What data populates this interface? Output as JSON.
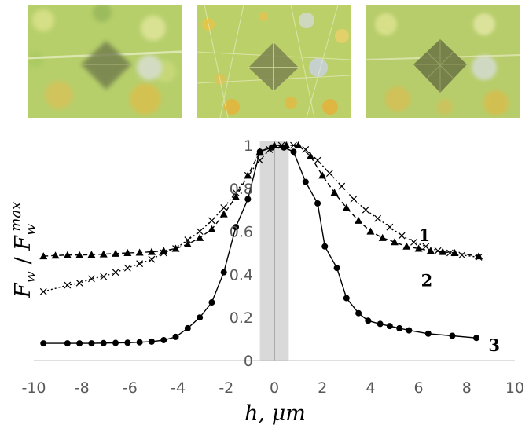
{
  "micrographs": [
    {
      "name": "indent-micrograph-1"
    },
    {
      "name": "indent-micrograph-2"
    },
    {
      "name": "indent-micrograph-3"
    }
  ],
  "chart_data": {
    "type": "line",
    "xlabel": "h, μm",
    "ylabel": "Fw / Fw^max",
    "ylabel_parts": {
      "F1": "F",
      "sub1": "w",
      "slash": " / ",
      "F2": "F",
      "sub2": "w",
      "sup": "max"
    },
    "xlim": [
      -10,
      10
    ],
    "ylim": [
      0,
      1
    ],
    "xticks": [
      "-10",
      "-8",
      "-6",
      "-4",
      "-2",
      "0",
      "2",
      "4",
      "6",
      "8",
      "10"
    ],
    "yticks": [
      "0",
      "0.2",
      "0.4",
      "0.6",
      "0.8",
      "1"
    ],
    "grid": false,
    "shaded_band": [
      -0.6,
      0.6
    ],
    "series": [
      {
        "name": "1",
        "marker": "x",
        "line": "dotted",
        "color": "#000000",
        "label_at": [
          6.0,
          0.58
        ],
        "points": [
          [
            -9.6,
            0.32
          ],
          [
            -8.6,
            0.35
          ],
          [
            -8.1,
            0.36
          ],
          [
            -7.6,
            0.38
          ],
          [
            -7.1,
            0.39
          ],
          [
            -6.6,
            0.41
          ],
          [
            -6.1,
            0.43
          ],
          [
            -5.6,
            0.45
          ],
          [
            -5.1,
            0.47
          ],
          [
            -4.6,
            0.5
          ],
          [
            -4.1,
            0.52
          ],
          [
            -3.6,
            0.56
          ],
          [
            -3.1,
            0.6
          ],
          [
            -2.6,
            0.65
          ],
          [
            -2.1,
            0.71
          ],
          [
            -1.6,
            0.78
          ],
          [
            -1.1,
            0.86
          ],
          [
            -0.6,
            0.93
          ],
          [
            -0.2,
            0.98
          ],
          [
            0.3,
            1.0
          ],
          [
            0.8,
            1.0
          ],
          [
            1.3,
            0.98
          ],
          [
            1.8,
            0.93
          ],
          [
            2.3,
            0.87
          ],
          [
            2.8,
            0.81
          ],
          [
            3.3,
            0.75
          ],
          [
            3.8,
            0.7
          ],
          [
            4.3,
            0.66
          ],
          [
            4.8,
            0.62
          ],
          [
            5.3,
            0.58
          ],
          [
            5.8,
            0.55
          ],
          [
            6.3,
            0.53
          ],
          [
            6.8,
            0.51
          ],
          [
            7.3,
            0.5
          ],
          [
            7.8,
            0.49
          ],
          [
            8.5,
            0.48
          ]
        ]
      },
      {
        "name": "2",
        "marker": "triangle",
        "line": "dashed",
        "color": "#000000",
        "label_at": [
          6.1,
          0.37
        ],
        "points": [
          [
            -9.6,
            0.485
          ],
          [
            -9.1,
            0.488
          ],
          [
            -8.6,
            0.49
          ],
          [
            -8.1,
            0.49
          ],
          [
            -7.6,
            0.492
          ],
          [
            -7.1,
            0.494
          ],
          [
            -6.6,
            0.497
          ],
          [
            -6.1,
            0.5
          ],
          [
            -5.6,
            0.502
          ],
          [
            -5.1,
            0.505
          ],
          [
            -4.6,
            0.51
          ],
          [
            -4.1,
            0.52
          ],
          [
            -3.6,
            0.54
          ],
          [
            -3.1,
            0.57
          ],
          [
            -2.6,
            0.61
          ],
          [
            -2.1,
            0.68
          ],
          [
            -1.6,
            0.76
          ],
          [
            -1.1,
            0.86
          ],
          [
            -0.6,
            0.97
          ],
          [
            0.0,
            1.0
          ],
          [
            0.5,
            1.0
          ],
          [
            1.0,
            1.0
          ],
          [
            1.5,
            0.95
          ],
          [
            2.0,
            0.86
          ],
          [
            2.5,
            0.78
          ],
          [
            3.0,
            0.71
          ],
          [
            3.5,
            0.65
          ],
          [
            4.0,
            0.6
          ],
          [
            4.5,
            0.57
          ],
          [
            5.0,
            0.55
          ],
          [
            5.5,
            0.53
          ],
          [
            6.0,
            0.52
          ],
          [
            6.5,
            0.51
          ],
          [
            7.0,
            0.505
          ],
          [
            7.5,
            0.5
          ],
          [
            8.5,
            0.485
          ]
        ]
      },
      {
        "name": "3",
        "marker": "circle",
        "line": "solid",
        "color": "#000000",
        "label_at": [
          8.9,
          0.07
        ],
        "points": [
          [
            -9.6,
            0.08
          ],
          [
            -8.6,
            0.08
          ],
          [
            -8.1,
            0.08
          ],
          [
            -7.6,
            0.08
          ],
          [
            -7.1,
            0.081
          ],
          [
            -6.6,
            0.082
          ],
          [
            -6.1,
            0.083
          ],
          [
            -5.6,
            0.085
          ],
          [
            -5.1,
            0.088
          ],
          [
            -4.6,
            0.095
          ],
          [
            -4.1,
            0.11
          ],
          [
            -3.6,
            0.15
          ],
          [
            -3.1,
            0.2
          ],
          [
            -2.6,
            0.27
          ],
          [
            -2.1,
            0.41
          ],
          [
            -1.6,
            0.62
          ],
          [
            -1.1,
            0.75
          ],
          [
            -0.6,
            0.97
          ],
          [
            -0.1,
            0.99
          ],
          [
            0.4,
            0.99
          ],
          [
            0.8,
            0.97
          ],
          [
            1.3,
            0.83
          ],
          [
            1.8,
            0.73
          ],
          [
            2.1,
            0.53
          ],
          [
            2.6,
            0.43
          ],
          [
            3.0,
            0.29
          ],
          [
            3.5,
            0.22
          ],
          [
            3.9,
            0.185
          ],
          [
            4.4,
            0.17
          ],
          [
            4.8,
            0.16
          ],
          [
            5.2,
            0.15
          ],
          [
            5.6,
            0.14
          ],
          [
            6.4,
            0.125
          ],
          [
            7.4,
            0.115
          ],
          [
            8.4,
            0.105
          ]
        ]
      }
    ]
  }
}
